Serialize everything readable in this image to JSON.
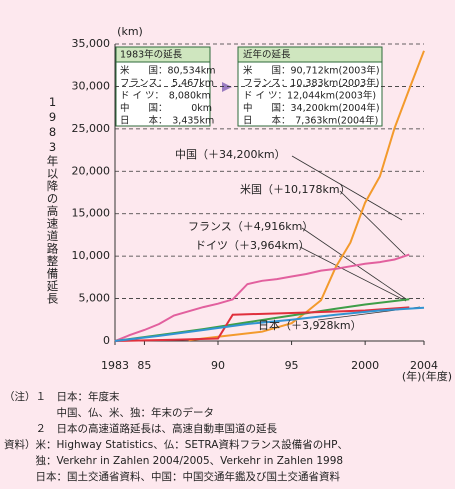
{
  "chart_data": {
    "type": "line",
    "y_label": "1983年以降の高速道路整備延長",
    "y_unit": "(km)",
    "x_unit": "(年)(年度)",
    "xlim": [
      1983,
      2004
    ],
    "xticks": [
      1983,
      {
        "value": 1985,
        "label": "85"
      },
      {
        "value": 1990,
        "label": "90"
      },
      {
        "value": 1995,
        "label": "95"
      },
      2000,
      2004
    ],
    "ylim": [
      0,
      35000
    ],
    "yticks": [
      0,
      {
        "value": 5000,
        "label": "5,000"
      },
      {
        "value": 10000,
        "label": "10,000"
      },
      {
        "value": 15000,
        "label": "15,000"
      },
      {
        "value": 20000,
        "label": "20,000"
      },
      {
        "value": 25000,
        "label": "25,000"
      },
      {
        "value": 30000,
        "label": "30,000"
      },
      {
        "value": 35000,
        "label": "35,000"
      }
    ],
    "grid": true,
    "series": [
      {
        "name": "中国（＋34,200km）",
        "color": "#f39a2c",
        "x": [
          1988,
          1990,
          1993,
          1994,
          1995,
          1996,
          1997,
          1998,
          1999,
          2000,
          2001,
          2002,
          2003,
          2004
        ],
        "values": [
          100,
          500,
          1100,
          1600,
          2100,
          3400,
          4800,
          8700,
          11600,
          16300,
          19400,
          25100,
          29700,
          34200
        ]
      },
      {
        "name": "米国（＋10,178km）",
        "color": "#e2609e",
        "x": [
          1983,
          1984,
          1985,
          1986,
          1987,
          1988,
          1989,
          1990,
          1991,
          1992,
          1993,
          1994,
          1995,
          1996,
          1997,
          1998,
          1999,
          2000,
          2001,
          2002,
          2003
        ],
        "values": [
          0,
          700,
          1300,
          2000,
          3000,
          3500,
          4000,
          4400,
          4900,
          6700,
          7100,
          7300,
          7600,
          7900,
          8300,
          8500,
          8800,
          9100,
          9300,
          9600,
          10178
        ]
      },
      {
        "name": "フランス（＋4,916km）",
        "color": "#3e9e48",
        "x": [
          1983,
          1986,
          1989,
          1992,
          1995,
          1998,
          2000,
          2003
        ],
        "values": [
          0,
          700,
          1400,
          2200,
          3000,
          3800,
          4300,
          4916
        ]
      },
      {
        "name": "ドイツ（＋3,964km）",
        "color": "#e0303c",
        "x": [
          1983,
          1987,
          1990,
          1991,
          1995,
          2000,
          2003
        ],
        "values": [
          0,
          150,
          300,
          3100,
          3300,
          3600,
          3964
        ]
      },
      {
        "name": "日本（＋3,928km）",
        "color": "#3294d2",
        "x": [
          1983,
          1986,
          1989,
          1992,
          1995,
          1998,
          2001,
          2004
        ],
        "values": [
          0,
          600,
          1300,
          2000,
          2500,
          3100,
          3600,
          3928
        ]
      }
    ],
    "box_1983": {
      "title": "1983年の延長",
      "rows": [
        "米　　国：80,534km",
        "フランス：　5,467km",
        "ド イ ツ：　8,080km",
        "中　　国：　　　0km",
        "日　　本：　3,435km"
      ]
    },
    "box_recent": {
      "title": "近年の延長",
      "rows": [
        "米　　国：90,712km(2003年)",
        "フランス：10,383km(2003年)",
        "ド イ ツ：12,044km(2003年)",
        "中　　国：34,200km(2004年)",
        "日　　本：　7,363km(2004年)"
      ]
    },
    "notes": [
      "（注）１　日本：年度末",
      "　　　　　中国、仏、米、独：年末のデータ",
      "　　　２　日本の高速道路延長は、高速自動車国道の延長",
      "資料）米：Highway Statistics、仏：SETRA資料フランス設備省のHP、",
      "　　　独：Verkehr in Zahlen 2004/2005、Verkehr in Zahlen 1998",
      "　　　日本：国土交通省資料、中国：中国交通年鑑及び国土交通省資料"
    ]
  }
}
